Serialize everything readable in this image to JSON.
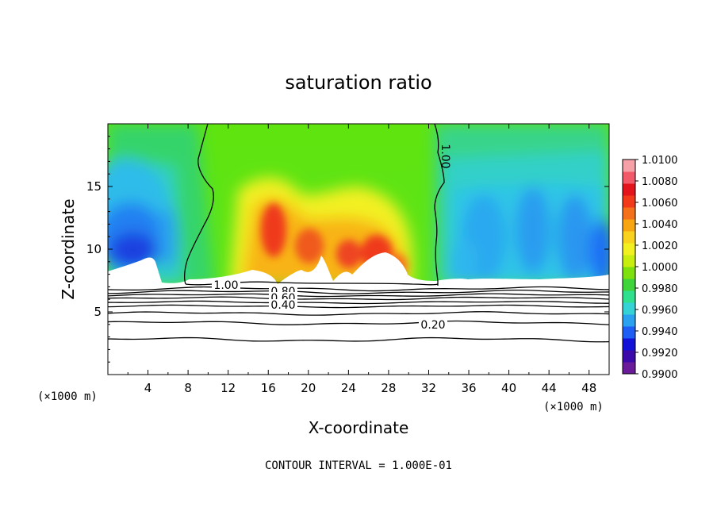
{
  "chart_data": {
    "type": "heatmap",
    "title": "saturation ratio",
    "xlabel": "X-coordinate",
    "ylabel": "Z-coordinate",
    "x_unit": "(×1000 m)",
    "x_unit_right": "(×1000 m)",
    "footer": "CONTOUR INTERVAL = 1.000E-01",
    "xlim": [
      0,
      50
    ],
    "ylim": [
      0,
      20
    ],
    "x_ticks": [
      4,
      8,
      12,
      16,
      20,
      24,
      28,
      32,
      36,
      40,
      44,
      48
    ],
    "y_ticks": [
      5,
      10,
      15
    ],
    "colorbar": {
      "labels": [
        "0.9900",
        "0.9920",
        "0.9940",
        "0.9960",
        "0.9980",
        "1.0000",
        "1.0020",
        "1.0040",
        "1.0060",
        "1.0080",
        "1.0100"
      ],
      "colors": [
        "#6a1b9a",
        "#3b0aa8",
        "#1111d8",
        "#1f5ef5",
        "#2aa2ef",
        "#35d2d6",
        "#2fe08e",
        "#3ed43a",
        "#7ee00c",
        "#c8ee10",
        "#f2f020",
        "#f8d21c",
        "#f8a512",
        "#f4701a",
        "#f23a1a",
        "#e3141c",
        "#f25a6a",
        "#f6a0a8"
      ]
    },
    "contours": [
      {
        "level": "1.00",
        "label": "1.00"
      },
      {
        "level": "0.80",
        "label": "0.80"
      },
      {
        "level": "0.60",
        "label": "0.60"
      },
      {
        "level": "0.40",
        "label": "0.40"
      },
      {
        "level": "0.20",
        "label": "0.20"
      }
    ]
  }
}
